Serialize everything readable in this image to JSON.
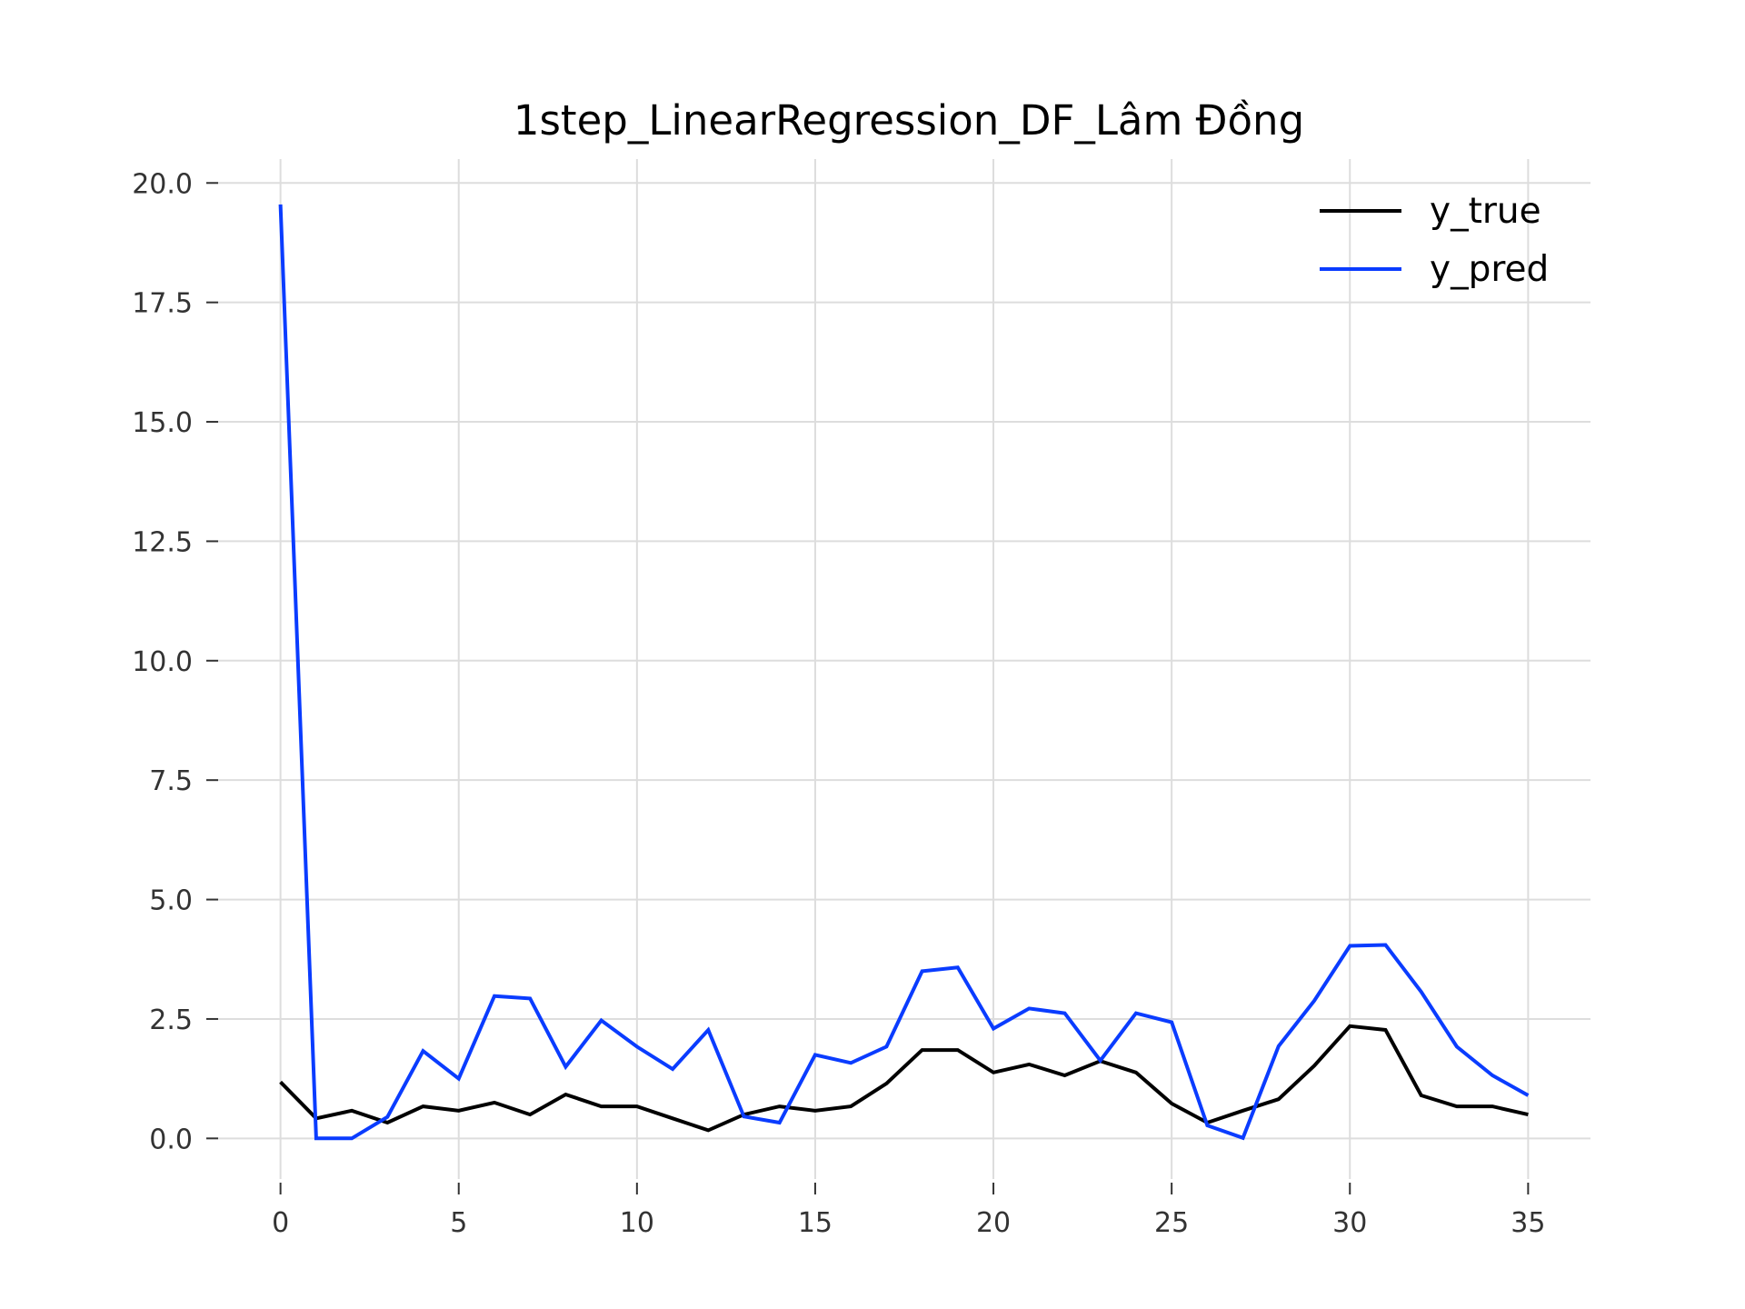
{
  "chart_data": {
    "type": "line",
    "title": "1step_LinearRegression_DF_Lâm Đồng",
    "xlabel": "",
    "ylabel": "",
    "xlim": [
      -1.75,
      36.75
    ],
    "ylim": [
      -0.85,
      20.5
    ],
    "x_ticks": [
      0,
      5,
      10,
      15,
      20,
      25,
      30,
      35
    ],
    "x_tick_labels": [
      "0",
      "5",
      "10",
      "15",
      "20",
      "25",
      "30",
      "35"
    ],
    "y_ticks": [
      0,
      2.5,
      5,
      7.5,
      10,
      12.5,
      15,
      17.5,
      20
    ],
    "y_tick_labels": [
      "0.0",
      "2.5",
      "5.0",
      "7.5",
      "10.0",
      "12.5",
      "15.0",
      "17.5",
      "20.0"
    ],
    "grid": true,
    "legend_position": "top-right",
    "x": [
      0,
      1,
      2,
      3,
      4,
      5,
      6,
      7,
      8,
      9,
      10,
      11,
      12,
      13,
      14,
      15,
      16,
      17,
      18,
      19,
      20,
      21,
      22,
      23,
      24,
      25,
      26,
      27,
      28,
      29,
      30,
      31,
      32,
      33,
      34,
      35
    ],
    "series": [
      {
        "name": "y_true",
        "color": "#000000",
        "values": [
          1.18,
          0.42,
          0.58,
          0.33,
          0.67,
          0.58,
          0.75,
          0.5,
          0.92,
          0.67,
          0.67,
          0.42,
          0.17,
          0.5,
          0.67,
          0.58,
          0.67,
          1.15,
          1.85,
          1.85,
          1.38,
          1.55,
          1.32,
          1.62,
          1.38,
          0.73,
          0.33,
          0.58,
          0.82,
          1.52,
          2.35,
          2.27,
          0.9,
          0.67,
          0.67,
          0.5
        ]
      },
      {
        "name": "y_pred",
        "color": "#0a3cff",
        "values": [
          19.55,
          0.0,
          0.0,
          0.45,
          1.83,
          1.25,
          2.98,
          2.93,
          1.5,
          2.47,
          1.92,
          1.45,
          2.27,
          0.46,
          0.33,
          1.75,
          1.58,
          1.92,
          3.5,
          3.58,
          2.3,
          2.72,
          2.62,
          1.63,
          2.62,
          2.43,
          0.27,
          0.01,
          1.93,
          2.88,
          4.03,
          4.05,
          3.07,
          1.92,
          1.32,
          0.9
        ]
      }
    ]
  }
}
